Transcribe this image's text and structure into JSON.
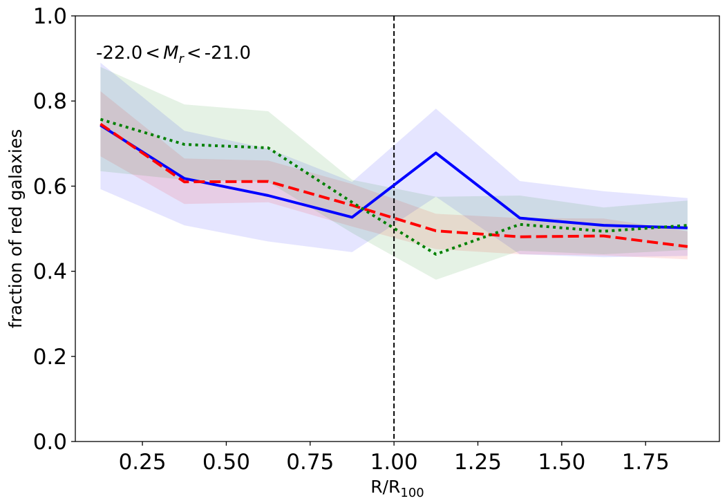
{
  "chart_data": {
    "type": "line",
    "title": "",
    "xlabel": "R/R",
    "xlabel_sub": "100",
    "ylabel": "fraction of red galaxies",
    "xlim": [
      0.05,
      1.97
    ],
    "ylim": [
      0.0,
      1.0
    ],
    "xticks": [
      "0.25",
      "0.50",
      "0.75",
      "1.00",
      "1.25",
      "1.50",
      "1.75"
    ],
    "yticks": [
      "0.0",
      "0.2",
      "0.4",
      "0.6",
      "0.8",
      "1.0"
    ],
    "annotation": {
      "prefix": "-22.0",
      "lt1": "<",
      "var": "M",
      "var_sub": "r",
      "lt2": "<",
      "suffix": "-21.0"
    },
    "vline_x": 1.0,
    "x": [
      0.125,
      0.375,
      0.625,
      0.875,
      1.125,
      1.375,
      1.625,
      1.875
    ],
    "series": [
      {
        "name": "blue-solid",
        "color": "#0000ff",
        "style": "solid",
        "values": [
          0.743,
          0.618,
          0.578,
          0.527,
          0.678,
          0.525,
          0.508,
          0.502
        ],
        "lower": [
          0.593,
          0.508,
          0.47,
          0.445,
          0.575,
          0.44,
          0.433,
          0.436
        ],
        "upper": [
          0.89,
          0.73,
          0.688,
          0.61,
          0.782,
          0.612,
          0.588,
          0.572
        ]
      },
      {
        "name": "red-dashed",
        "color": "#ff0000",
        "style": "dashed",
        "values": [
          0.746,
          0.61,
          0.611,
          0.555,
          0.495,
          0.481,
          0.483,
          0.458
        ],
        "lower": [
          0.67,
          0.558,
          0.562,
          0.505,
          0.452,
          0.44,
          0.437,
          0.428
        ],
        "upper": [
          0.823,
          0.665,
          0.66,
          0.605,
          0.535,
          0.525,
          0.524,
          0.494
        ]
      },
      {
        "name": "green-dotted",
        "color": "#008000",
        "style": "dotted",
        "values": [
          0.757,
          0.698,
          0.69,
          0.562,
          0.44,
          0.51,
          0.494,
          0.508
        ],
        "lower": [
          0.635,
          0.615,
          0.61,
          0.49,
          0.38,
          0.448,
          0.44,
          0.45
        ],
        "upper": [
          0.88,
          0.792,
          0.776,
          0.615,
          0.575,
          0.578,
          0.55,
          0.566
        ]
      }
    ]
  }
}
